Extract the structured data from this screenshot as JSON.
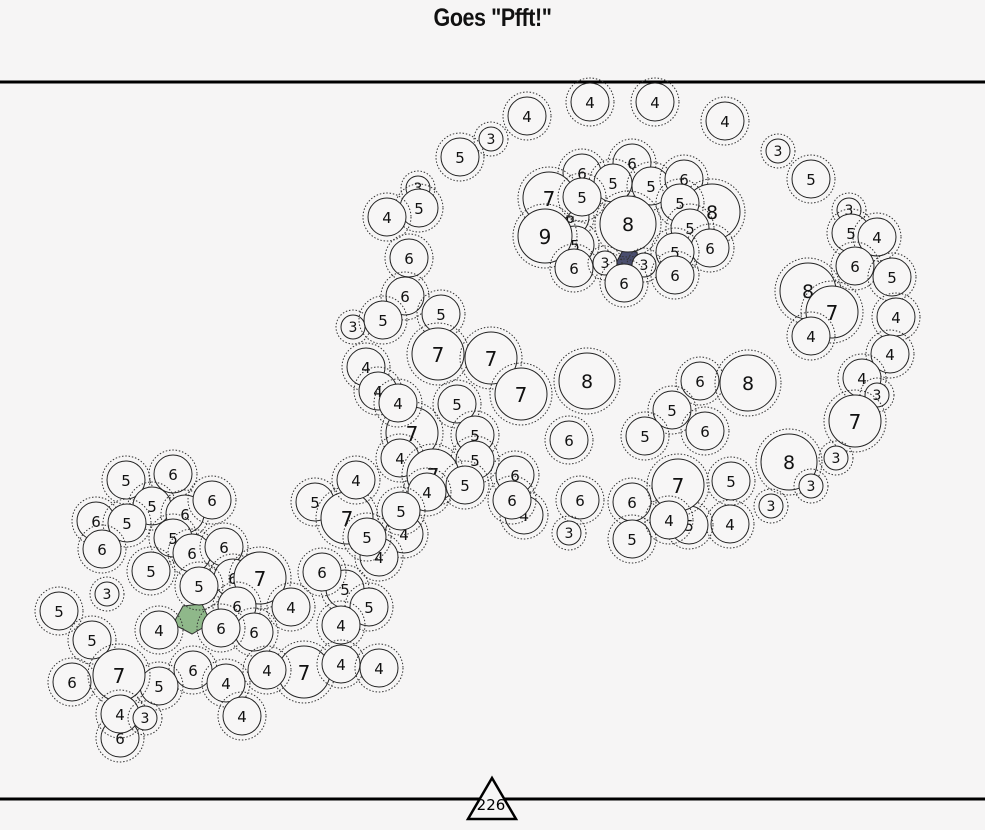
{
  "title": "Goes \"Pfft!\"",
  "counter": "226",
  "colors": {
    "background": "#f6f5f5",
    "selected_green": "#8fb88a",
    "selected_navy": "#4a4e6e"
  },
  "cells": [
    {
      "label": "4"
    },
    {
      "label": "4"
    },
    {
      "label": "4"
    },
    {
      "label": "4"
    },
    {
      "label": "3"
    },
    {
      "label": "5"
    },
    {
      "label": "3"
    },
    {
      "label": "5"
    },
    {
      "label": "6"
    },
    {
      "label": "6"
    },
    {
      "label": "5"
    },
    {
      "label": "5"
    },
    {
      "label": "6"
    },
    {
      "label": "6"
    },
    {
      "label": "7"
    },
    {
      "label": "5"
    },
    {
      "label": "8"
    },
    {
      "label": "8"
    },
    {
      "label": "5"
    },
    {
      "label": "5"
    },
    {
      "label": "5"
    },
    {
      "label": "6"
    },
    {
      "label": "9"
    },
    {
      "label": "5"
    },
    {
      "label": "6"
    },
    {
      "label": "3"
    },
    {
      "label": "3"
    },
    {
      "label": "6"
    },
    {
      "label": "6"
    },
    {
      "label": "3"
    },
    {
      "label": "5"
    },
    {
      "label": "4"
    },
    {
      "label": "3"
    },
    {
      "label": "5"
    },
    {
      "label": "4"
    },
    {
      "label": "6"
    },
    {
      "label": "5"
    },
    {
      "label": "6"
    },
    {
      "label": "6"
    },
    {
      "label": "3"
    },
    {
      "label": "5"
    },
    {
      "label": "5"
    },
    {
      "label": "8"
    },
    {
      "label": "7"
    },
    {
      "label": "4"
    },
    {
      "label": "4"
    },
    {
      "label": "4"
    },
    {
      "label": "4"
    },
    {
      "label": "3"
    },
    {
      "label": "7"
    },
    {
      "label": "4"
    },
    {
      "label": "7"
    },
    {
      "label": "7"
    },
    {
      "label": "7"
    },
    {
      "label": "8"
    },
    {
      "label": "6"
    },
    {
      "label": "8"
    },
    {
      "label": "5"
    },
    {
      "label": "6"
    },
    {
      "label": "5"
    },
    {
      "label": "5"
    },
    {
      "label": "7"
    },
    {
      "label": "4"
    },
    {
      "label": "5"
    },
    {
      "label": "4"
    },
    {
      "label": "4"
    },
    {
      "label": "5"
    },
    {
      "label": "6"
    },
    {
      "label": "8"
    },
    {
      "label": "3"
    },
    {
      "label": "3"
    },
    {
      "label": "7"
    },
    {
      "label": "5"
    },
    {
      "label": "6"
    },
    {
      "label": "4"
    },
    {
      "label": "3"
    },
    {
      "label": "6"
    },
    {
      "label": "6"
    },
    {
      "label": "4"
    },
    {
      "label": "5"
    },
    {
      "label": "5"
    },
    {
      "label": "4"
    },
    {
      "label": "5"
    },
    {
      "label": "7"
    },
    {
      "label": "4"
    },
    {
      "label": "5"
    },
    {
      "label": "7"
    },
    {
      "label": "4"
    },
    {
      "label": "4"
    },
    {
      "label": "4"
    },
    {
      "label": "5"
    },
    {
      "label": "5"
    },
    {
      "label": "6"
    },
    {
      "label": "3"
    },
    {
      "label": "6"
    },
    {
      "label": "5"
    },
    {
      "label": "5"
    },
    {
      "label": "6"
    },
    {
      "label": "6"
    },
    {
      "label": "6"
    },
    {
      "label": "5"
    },
    {
      "label": "6"
    },
    {
      "label": "5"
    },
    {
      "label": "6"
    },
    {
      "label": "6"
    },
    {
      "label": "5"
    },
    {
      "label": "6"
    },
    {
      "label": "7"
    },
    {
      "label": "5"
    },
    {
      "label": "3"
    },
    {
      "label": "6"
    },
    {
      "label": "4"
    },
    {
      "label": "5"
    },
    {
      "label": "5"
    },
    {
      "label": "6"
    },
    {
      "label": "4"
    },
    {
      "label": "6"
    },
    {
      "label": "5"
    },
    {
      "label": "5"
    },
    {
      "label": "4"
    },
    {
      "label": "6"
    },
    {
      "label": "7"
    },
    {
      "label": "4"
    },
    {
      "label": "4"
    },
    {
      "label": "4"
    },
    {
      "label": "6"
    },
    {
      "label": "4"
    },
    {
      "label": "5"
    },
    {
      "label": "6"
    },
    {
      "label": "7"
    },
    {
      "label": "6"
    },
    {
      "label": "4"
    },
    {
      "label": "4"
    },
    {
      "label": "3"
    }
  ]
}
